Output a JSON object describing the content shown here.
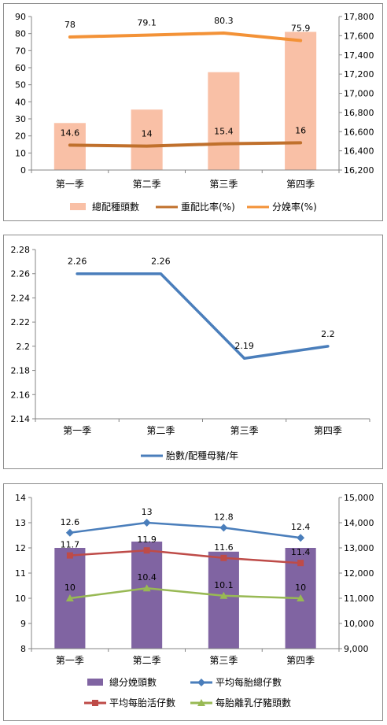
{
  "chart_data": [
    {
      "type": "bar",
      "categories": [
        "第一季",
        "第二季",
        "第三季",
        "第四季"
      ],
      "ylim": [
        0,
        90
      ],
      "y2lim": [
        16200,
        17800
      ],
      "y_ticks": [
        "0",
        "10",
        "20",
        "30",
        "40",
        "50",
        "60",
        "70",
        "80",
        "90"
      ],
      "y2_ticks": [
        "16,200",
        "16,400",
        "16,600",
        "16,800",
        "17,000",
        "17,200",
        "17,400",
        "17,600",
        "17,800"
      ],
      "legend_position": "bottom",
      "series": [
        {
          "name": "總配種頭數",
          "type": "bar",
          "axis": "right",
          "color": "#f9c0a6",
          "values": [
            16690,
            16830,
            17220,
            17640
          ]
        },
        {
          "name": "重配比率(%)",
          "type": "line",
          "axis": "left",
          "color": "#c0702c",
          "values": [
            14.6,
            14,
            15.4,
            16
          ],
          "labels": [
            "14.6",
            "14",
            "15.4",
            "16"
          ]
        },
        {
          "name": "分娩率(%)",
          "type": "line",
          "axis": "left",
          "color": "#f39237",
          "values": [
            78,
            79.1,
            80.3,
            75.9
          ],
          "labels": [
            "78",
            "79.1",
            "80.3",
            "75.9"
          ]
        }
      ]
    },
    {
      "type": "line",
      "categories": [
        "第一季",
        "第二季",
        "第三季",
        "第四季"
      ],
      "ylim": [
        2.14,
        2.28
      ],
      "y_ticks": [
        "2.14",
        "2.16",
        "2.18",
        "2.2",
        "2.22",
        "2.24",
        "2.26",
        "2.28"
      ],
      "legend_position": "bottom",
      "series": [
        {
          "name": "胎數/配種母豬/年",
          "type": "line",
          "color": "#4a7ebb",
          "values": [
            2.26,
            2.26,
            2.19,
            2.2
          ],
          "labels": [
            "2.26",
            "2.26",
            "2.19",
            "2.2"
          ]
        }
      ]
    },
    {
      "type": "bar",
      "categories": [
        "第一季",
        "第二季",
        "第三季",
        "第四季"
      ],
      "ylim": [
        8,
        14
      ],
      "y2lim": [
        9000,
        15000
      ],
      "y_ticks": [
        "8",
        "9",
        "10",
        "11",
        "12",
        "13",
        "14"
      ],
      "y2_ticks": [
        "9,000",
        "10,000",
        "11,000",
        "12,000",
        "13,000",
        "14,000",
        "15,000"
      ],
      "legend_position": "bottom",
      "series": [
        {
          "name": "總分娩頭數",
          "type": "bar",
          "axis": "right",
          "color": "#8064a2",
          "values": [
            13000,
            13250,
            12850,
            13000
          ]
        },
        {
          "name": "平均每胎總仔數",
          "type": "line",
          "axis": "left",
          "color": "#4a7ebb",
          "marker": "diamond",
          "values": [
            12.6,
            13,
            12.8,
            12.4
          ],
          "labels": [
            "12.6",
            "13",
            "12.8",
            "12.4"
          ]
        },
        {
          "name": "平均每胎活仔數",
          "type": "line",
          "axis": "left",
          "color": "#be4b48",
          "marker": "square",
          "values": [
            11.7,
            11.9,
            11.6,
            11.4
          ],
          "labels": [
            "11.7",
            "11.9",
            "11.6",
            "11.4"
          ]
        },
        {
          "name": "每胎離乳仔豬頭數",
          "type": "line",
          "axis": "left",
          "color": "#98b954",
          "marker": "triangle",
          "values": [
            10,
            10.4,
            10.1,
            10
          ],
          "labels": [
            "10",
            "10.4",
            "10.1",
            "10"
          ]
        }
      ]
    }
  ]
}
